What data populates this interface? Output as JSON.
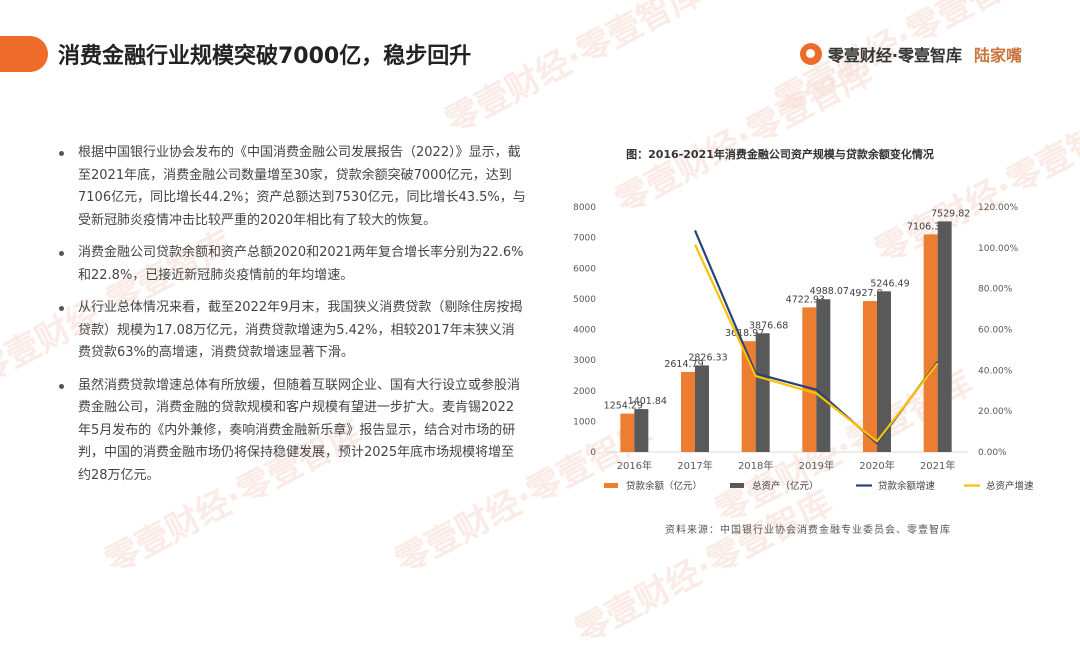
{
  "header": {
    "title": "消费金融行业规模突破7000亿，稳步回升",
    "brand_primary": "零壹财经·零壹智库",
    "brand_secondary": "陆家嘴"
  },
  "watermark": "零壹财经·零壹智库",
  "bullets": [
    "根据中国银行业协会发布的《中国消费金融公司发展报告（2022）》显示，截至2021年底，消费金融公司数量增至30家，贷款余额突破7000亿元，达到7106亿元，同比增长44.2%；资产总额达到7530亿元，同比增长43.5%，与受新冠肺炎疫情冲击比较严重的2020年相比有了较大的恢复。",
    "消费金融公司贷款余额和资产总额2020和2021两年复合增长率分别为22.6%和22.8%，已接近新冠肺炎疫情前的年均增速。",
    "从行业总体情况来看，截至2022年9月末，我国狭义消费贷款（剔除住房按揭贷款）规模为17.08万亿元，消费贷款增速为5.42%，相较2017年末狭义消费贷款63%的高增速，消费贷款增速显著下滑。",
    "虽然消费贷款增速总体有所放缓，但随着互联网企业、国有大行设立或参股消费金融公司，消费金融的贷款规模和客户规模有望进一步扩大。麦肯锡2022年5月发布的《内外兼修，奏响消费金融新乐章》报告显示，结合对市场的研判，中国的消费金融市场仍将保持稳健发展，预计2025年底市场规模将增至约28万亿元。"
  ],
  "chart_data": {
    "type": "bar",
    "title": "图：2016-2021年消费金融公司资产规模与贷款余额变化情况",
    "categories": [
      "2016年",
      "2017年",
      "2018年",
      "2019年",
      "2020年",
      "2021年"
    ],
    "series": [
      {
        "name": "贷款余额（亿元）",
        "type": "bar",
        "axis": "left",
        "color": "#ed7d31",
        "values": [
          1254.29,
          2614.79,
          3618.97,
          4722.93,
          4927.8,
          7106.32
        ],
        "labels": [
          "1254.29",
          "2614.79",
          "3618.97",
          "4722.93",
          "4927.8",
          "7106.32"
        ]
      },
      {
        "name": "总资产（亿元）",
        "type": "bar",
        "axis": "left",
        "color": "#595959",
        "values": [
          1401.84,
          2826.33,
          3876.68,
          4988.07,
          5246.49,
          7529.82
        ],
        "labels": [
          "1401.84",
          "2826.33",
          "3876.68",
          "4988.07",
          "5246.49",
          "7529.82"
        ]
      },
      {
        "name": "贷款余额增速",
        "type": "line",
        "axis": "right",
        "color": "#264478",
        "values": [
          null,
          1.085,
          0.384,
          0.305,
          0.043,
          0.442
        ]
      },
      {
        "name": "总资产增速",
        "type": "line",
        "axis": "right",
        "color": "#ffc000",
        "values": [
          null,
          1.016,
          0.372,
          0.287,
          0.052,
          0.435
        ]
      }
    ],
    "y_left": {
      "min": 0,
      "max": 8000,
      "step": 1000,
      "ticks": [
        "0",
        "1000",
        "2000",
        "3000",
        "4000",
        "5000",
        "6000",
        "7000",
        "8000"
      ]
    },
    "y_right": {
      "min": 0,
      "max": 1.2,
      "step": 0.2,
      "ticks": [
        "0.00%",
        "20.00%",
        "40.00%",
        "60.00%",
        "80.00%",
        "100.00%",
        "120.00%"
      ]
    },
    "grid": false,
    "legend_position": "bottom"
  },
  "source": "资料来源：中国银行业协会消费金融专业委员会、零壹智库"
}
